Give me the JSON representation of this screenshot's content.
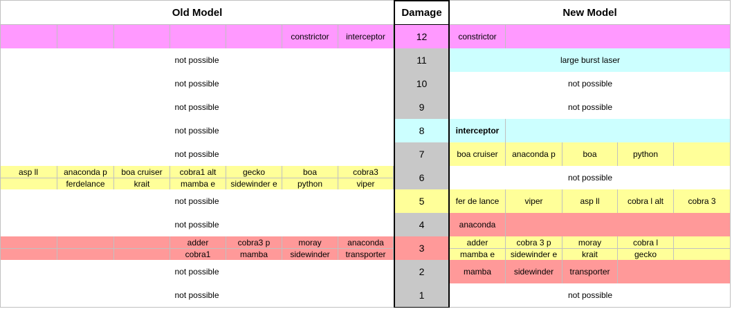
{
  "headers": {
    "old": "Old Model",
    "damage": "Damage",
    "new": "New Model"
  },
  "rows": [
    {
      "damage": 12,
      "damage_fill": "#ff99ff",
      "old": {
        "fill": "#ff99ff",
        "lines": [
          [
            null,
            null,
            null,
            null,
            null,
            "constrictor",
            "interceptor"
          ]
        ]
      },
      "new": {
        "fill": "#ff99ff",
        "lines": [
          [
            "constrictor"
          ]
        ]
      }
    },
    {
      "damage": 11,
      "damage_fill": "#c8c8c8",
      "old": {
        "fill": "#ffffff",
        "text": "not possible"
      },
      "new": {
        "fill": "#ccffff",
        "text": "large burst laser"
      }
    },
    {
      "damage": 10,
      "damage_fill": "#c8c8c8",
      "old": {
        "fill": "#ffffff",
        "text": "not possible"
      },
      "new": {
        "fill": "#ffffff",
        "text": "not possible"
      }
    },
    {
      "damage": 9,
      "damage_fill": "#c8c8c8",
      "old": {
        "fill": "#ffffff",
        "text": "not possible"
      },
      "new": {
        "fill": "#ffffff",
        "text": "not possible"
      }
    },
    {
      "damage": 8,
      "damage_fill": "#ccffff",
      "old": {
        "fill": "#ffffff",
        "text": "not possible"
      },
      "new": {
        "fill": "#ccffff",
        "bold": true,
        "lines": [
          [
            "interceptor"
          ]
        ]
      }
    },
    {
      "damage": 7,
      "damage_fill": "#c8c8c8",
      "old": {
        "fill": "#ffffff",
        "text": "not possible"
      },
      "new": {
        "fill": "#ffff99",
        "lines": [
          [
            "boa cruiser",
            "anaconda p",
            "boa",
            "python",
            null
          ]
        ]
      }
    },
    {
      "damage": 6,
      "damage_fill": "#c8c8c8",
      "old": {
        "fill": "#ffff99",
        "lines": [
          [
            "asp ll",
            "anaconda p",
            "boa cruiser",
            "cobra1 alt",
            "gecko",
            "boa",
            "cobra3"
          ],
          [
            null,
            "ferdelance",
            "krait",
            "mamba e",
            "sidewinder e",
            "python",
            "viper"
          ]
        ]
      },
      "new": {
        "fill": "#ffffff",
        "text": "not possible"
      }
    },
    {
      "damage": 5,
      "damage_fill": "#ffff99",
      "old": {
        "fill": "#ffffff",
        "text": "not possible"
      },
      "new": {
        "fill": "#ffff99",
        "lines": [
          [
            "fer de lance",
            "viper",
            "asp ll",
            "cobra l alt",
            "cobra 3"
          ]
        ]
      }
    },
    {
      "damage": 4,
      "damage_fill": "#c8c8c8",
      "old": {
        "fill": "#ffffff",
        "text": "not possible"
      },
      "new": {
        "fill": "#ff9999",
        "lines": [
          [
            "anaconda"
          ]
        ]
      }
    },
    {
      "damage": 3,
      "damage_fill": "#ff9999",
      "old": {
        "fill": "#ff9999",
        "lines": [
          [
            null,
            null,
            null,
            "adder",
            "cobra3 p",
            "moray",
            "anaconda"
          ],
          [
            null,
            null,
            null,
            "cobra1",
            "mamba",
            "sidewinder",
            "transporter"
          ]
        ]
      },
      "new": {
        "fill": "#ffff99",
        "lines": [
          [
            "adder",
            "cobra 3 p",
            "moray",
            "cobra l",
            null
          ],
          [
            "mamba e",
            "sidewinder e",
            "krait",
            "gecko",
            null
          ]
        ]
      }
    },
    {
      "damage": 2,
      "damage_fill": "#c8c8c8",
      "old": {
        "fill": "#ffffff",
        "text": "not possible"
      },
      "new": {
        "fill": "#ff9999",
        "lines": [
          [
            "mamba",
            "sidewinder",
            "transporter"
          ]
        ]
      }
    },
    {
      "damage": 1,
      "damage_fill": "#c8c8c8",
      "old": {
        "fill": "#ffffff",
        "text": "not possible"
      },
      "new": {
        "fill": "#ffffff",
        "text": "not possible"
      }
    }
  ]
}
